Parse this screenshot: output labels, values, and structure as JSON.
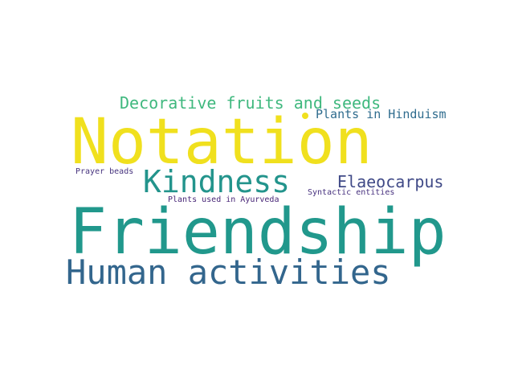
{
  "words": {
    "notation": {
      "text": "Notation",
      "color": "#f0e01e"
    },
    "friendship": {
      "text": "Friendship",
      "color": "#21988c"
    },
    "human": {
      "text": "Human activities",
      "color": "#33668d"
    },
    "kindness": {
      "text": "Kindness",
      "color": "#23948c"
    },
    "decorative": {
      "text": "Decorative fruits and seeds",
      "color": "#3fb87e"
    },
    "elaeo": {
      "text": "Elaeocarpus",
      "color": "#404a87"
    },
    "hinduism": {
      "text": "Plants in Hinduism",
      "color": "#2f6c8e"
    },
    "prayer": {
      "text": "Prayer beads",
      "color": "#46337e"
    },
    "syntactic": {
      "text": "Syntactic entities",
      "color": "#46307e"
    },
    "ayurveda": {
      "text": "Plants used in Ayurveda",
      "color": "#482677"
    }
  },
  "dot": {
    "color": "#f0e01e"
  }
}
